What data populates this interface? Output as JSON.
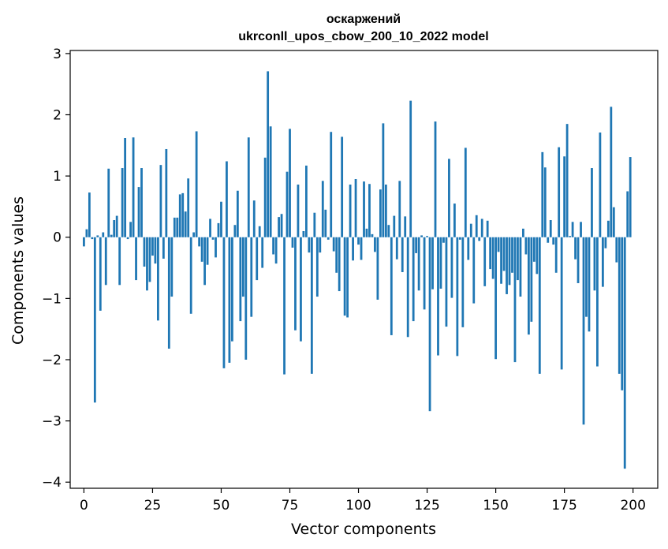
{
  "chart_data": {
    "type": "bar",
    "title_line1": "оскаржений",
    "title_line2": "ukrconll_upos_cbow_200_10_2022 model",
    "xlabel": "Vector components",
    "ylabel": "Components values",
    "xlim": [
      -5,
      209
    ],
    "ylim": [
      -4.1,
      3.05
    ],
    "xticks": [
      0,
      25,
      50,
      75,
      100,
      125,
      150,
      175,
      200
    ],
    "xtick_labels": [
      "0",
      "25",
      "50",
      "75",
      "100",
      "125",
      "150",
      "175",
      "200"
    ],
    "yticks": [
      -4,
      -3,
      -2,
      -1,
      0,
      1,
      2,
      3
    ],
    "ytick_labels": [
      "−4",
      "−3",
      "−2",
      "−1",
      "0",
      "1",
      "2",
      "3"
    ],
    "grid": false,
    "bar_color": "#1f77b4",
    "x": [
      0,
      1,
      2,
      3,
      4,
      5,
      6,
      7,
      8,
      9,
      10,
      11,
      12,
      13,
      14,
      15,
      16,
      17,
      18,
      19,
      20,
      21,
      22,
      23,
      24,
      25,
      26,
      27,
      28,
      29,
      30,
      31,
      32,
      33,
      34,
      35,
      36,
      37,
      38,
      39,
      40,
      41,
      42,
      43,
      44,
      45,
      46,
      47,
      48,
      49,
      50,
      51,
      52,
      53,
      54,
      55,
      56,
      57,
      58,
      59,
      60,
      61,
      62,
      63,
      64,
      65,
      66,
      67,
      68,
      69,
      70,
      71,
      72,
      73,
      74,
      75,
      76,
      77,
      78,
      79,
      80,
      81,
      82,
      83,
      84,
      85,
      86,
      87,
      88,
      89,
      90,
      91,
      92,
      93,
      94,
      95,
      96,
      97,
      98,
      99,
      100,
      101,
      102,
      103,
      104,
      105,
      106,
      107,
      108,
      109,
      110,
      111,
      112,
      113,
      114,
      115,
      116,
      117,
      118,
      119,
      120,
      121,
      122,
      123,
      124,
      125,
      126,
      127,
      128,
      129,
      130,
      131,
      132,
      133,
      134,
      135,
      136,
      137,
      138,
      139,
      140,
      141,
      142,
      143,
      144,
      145,
      146,
      147,
      148,
      149,
      150,
      151,
      152,
      153,
      154,
      155,
      156,
      157,
      158,
      159,
      160,
      161,
      162,
      163,
      164,
      165,
      166,
      167,
      168,
      169,
      170,
      171,
      172,
      173,
      174,
      175,
      176,
      177,
      178,
      179,
      180,
      181,
      182,
      183,
      184,
      185,
      186,
      187,
      188,
      189,
      190,
      191,
      192,
      193,
      194,
      195,
      196,
      197,
      198,
      199
    ],
    "values": [
      -0.15,
      0.13,
      0.73,
      -0.03,
      -2.7,
      0.03,
      -1.2,
      0.08,
      -0.78,
      1.12,
      0.04,
      0.28,
      0.35,
      -0.78,
      1.13,
      1.62,
      -0.03,
      0.25,
      1.63,
      -0.7,
      0.82,
      1.13,
      -0.48,
      -0.87,
      -0.73,
      -0.3,
      -0.43,
      -1.36,
      1.18,
      -0.35,
      1.44,
      -1.82,
      -0.97,
      0.32,
      0.32,
      0.7,
      0.72,
      0.42,
      0.96,
      -1.25,
      0.08,
      1.73,
      -0.15,
      -0.4,
      -0.78,
      -0.45,
      0.3,
      -0.04,
      -0.33,
      0.23,
      0.58,
      -2.14,
      1.24,
      -2.05,
      -1.7,
      0.2,
      0.76,
      -1.37,
      -0.97,
      -2.0,
      1.63,
      -1.3,
      0.6,
      -0.7,
      0.18,
      -0.5,
      1.3,
      2.71,
      1.81,
      -0.28,
      -0.43,
      0.33,
      0.38,
      -2.24,
      1.07,
      1.77,
      -0.17,
      -1.52,
      0.86,
      -1.7,
      0.1,
      1.17,
      -0.25,
      -2.23,
      0.4,
      -0.97,
      -0.25,
      0.92,
      0.45,
      -0.04,
      1.72,
      -0.23,
      -0.58,
      -0.88,
      1.64,
      -1.28,
      -1.31,
      0.86,
      -0.38,
      0.95,
      -0.12,
      -0.37,
      0.91,
      0.14,
      0.87,
      0.05,
      -0.24,
      -1.02,
      0.78,
      1.86,
      0.86,
      0.2,
      -1.6,
      0.35,
      -0.36,
      0.92,
      -0.57,
      0.34,
      -1.63,
      2.23,
      -1.37,
      -0.26,
      -0.87,
      0.03,
      -1.18,
      0.02,
      -2.84,
      -0.85,
      1.89,
      -1.93,
      -0.84,
      -0.09,
      -1.46,
      1.28,
      -0.99,
      0.55,
      -1.94,
      -0.04,
      -1.47,
      1.46,
      -0.37,
      0.22,
      -1.08,
      0.36,
      -0.06,
      0.3,
      -0.8,
      0.27,
      -0.52,
      -0.68,
      -1.99,
      -0.24,
      -0.76,
      -0.55,
      -0.93,
      -0.78,
      -0.58,
      -2.04,
      -0.7,
      -0.97,
      0.14,
      -0.28,
      -1.59,
      -1.38,
      -0.4,
      -0.6,
      -2.23,
      1.39,
      1.14,
      -0.09,
      0.28,
      -0.12,
      -0.58,
      1.47,
      -2.16,
      1.32,
      1.85,
      0.02,
      0.25,
      -0.36,
      -0.75,
      0.25,
      -3.06,
      -1.3,
      -1.54,
      1.13,
      -0.87,
      -2.11,
      1.71,
      -0.81,
      -0.18,
      0.27,
      2.13,
      0.49,
      -0.41,
      -2.23,
      -2.5,
      -3.78,
      0.75,
      1.31
    ]
  }
}
